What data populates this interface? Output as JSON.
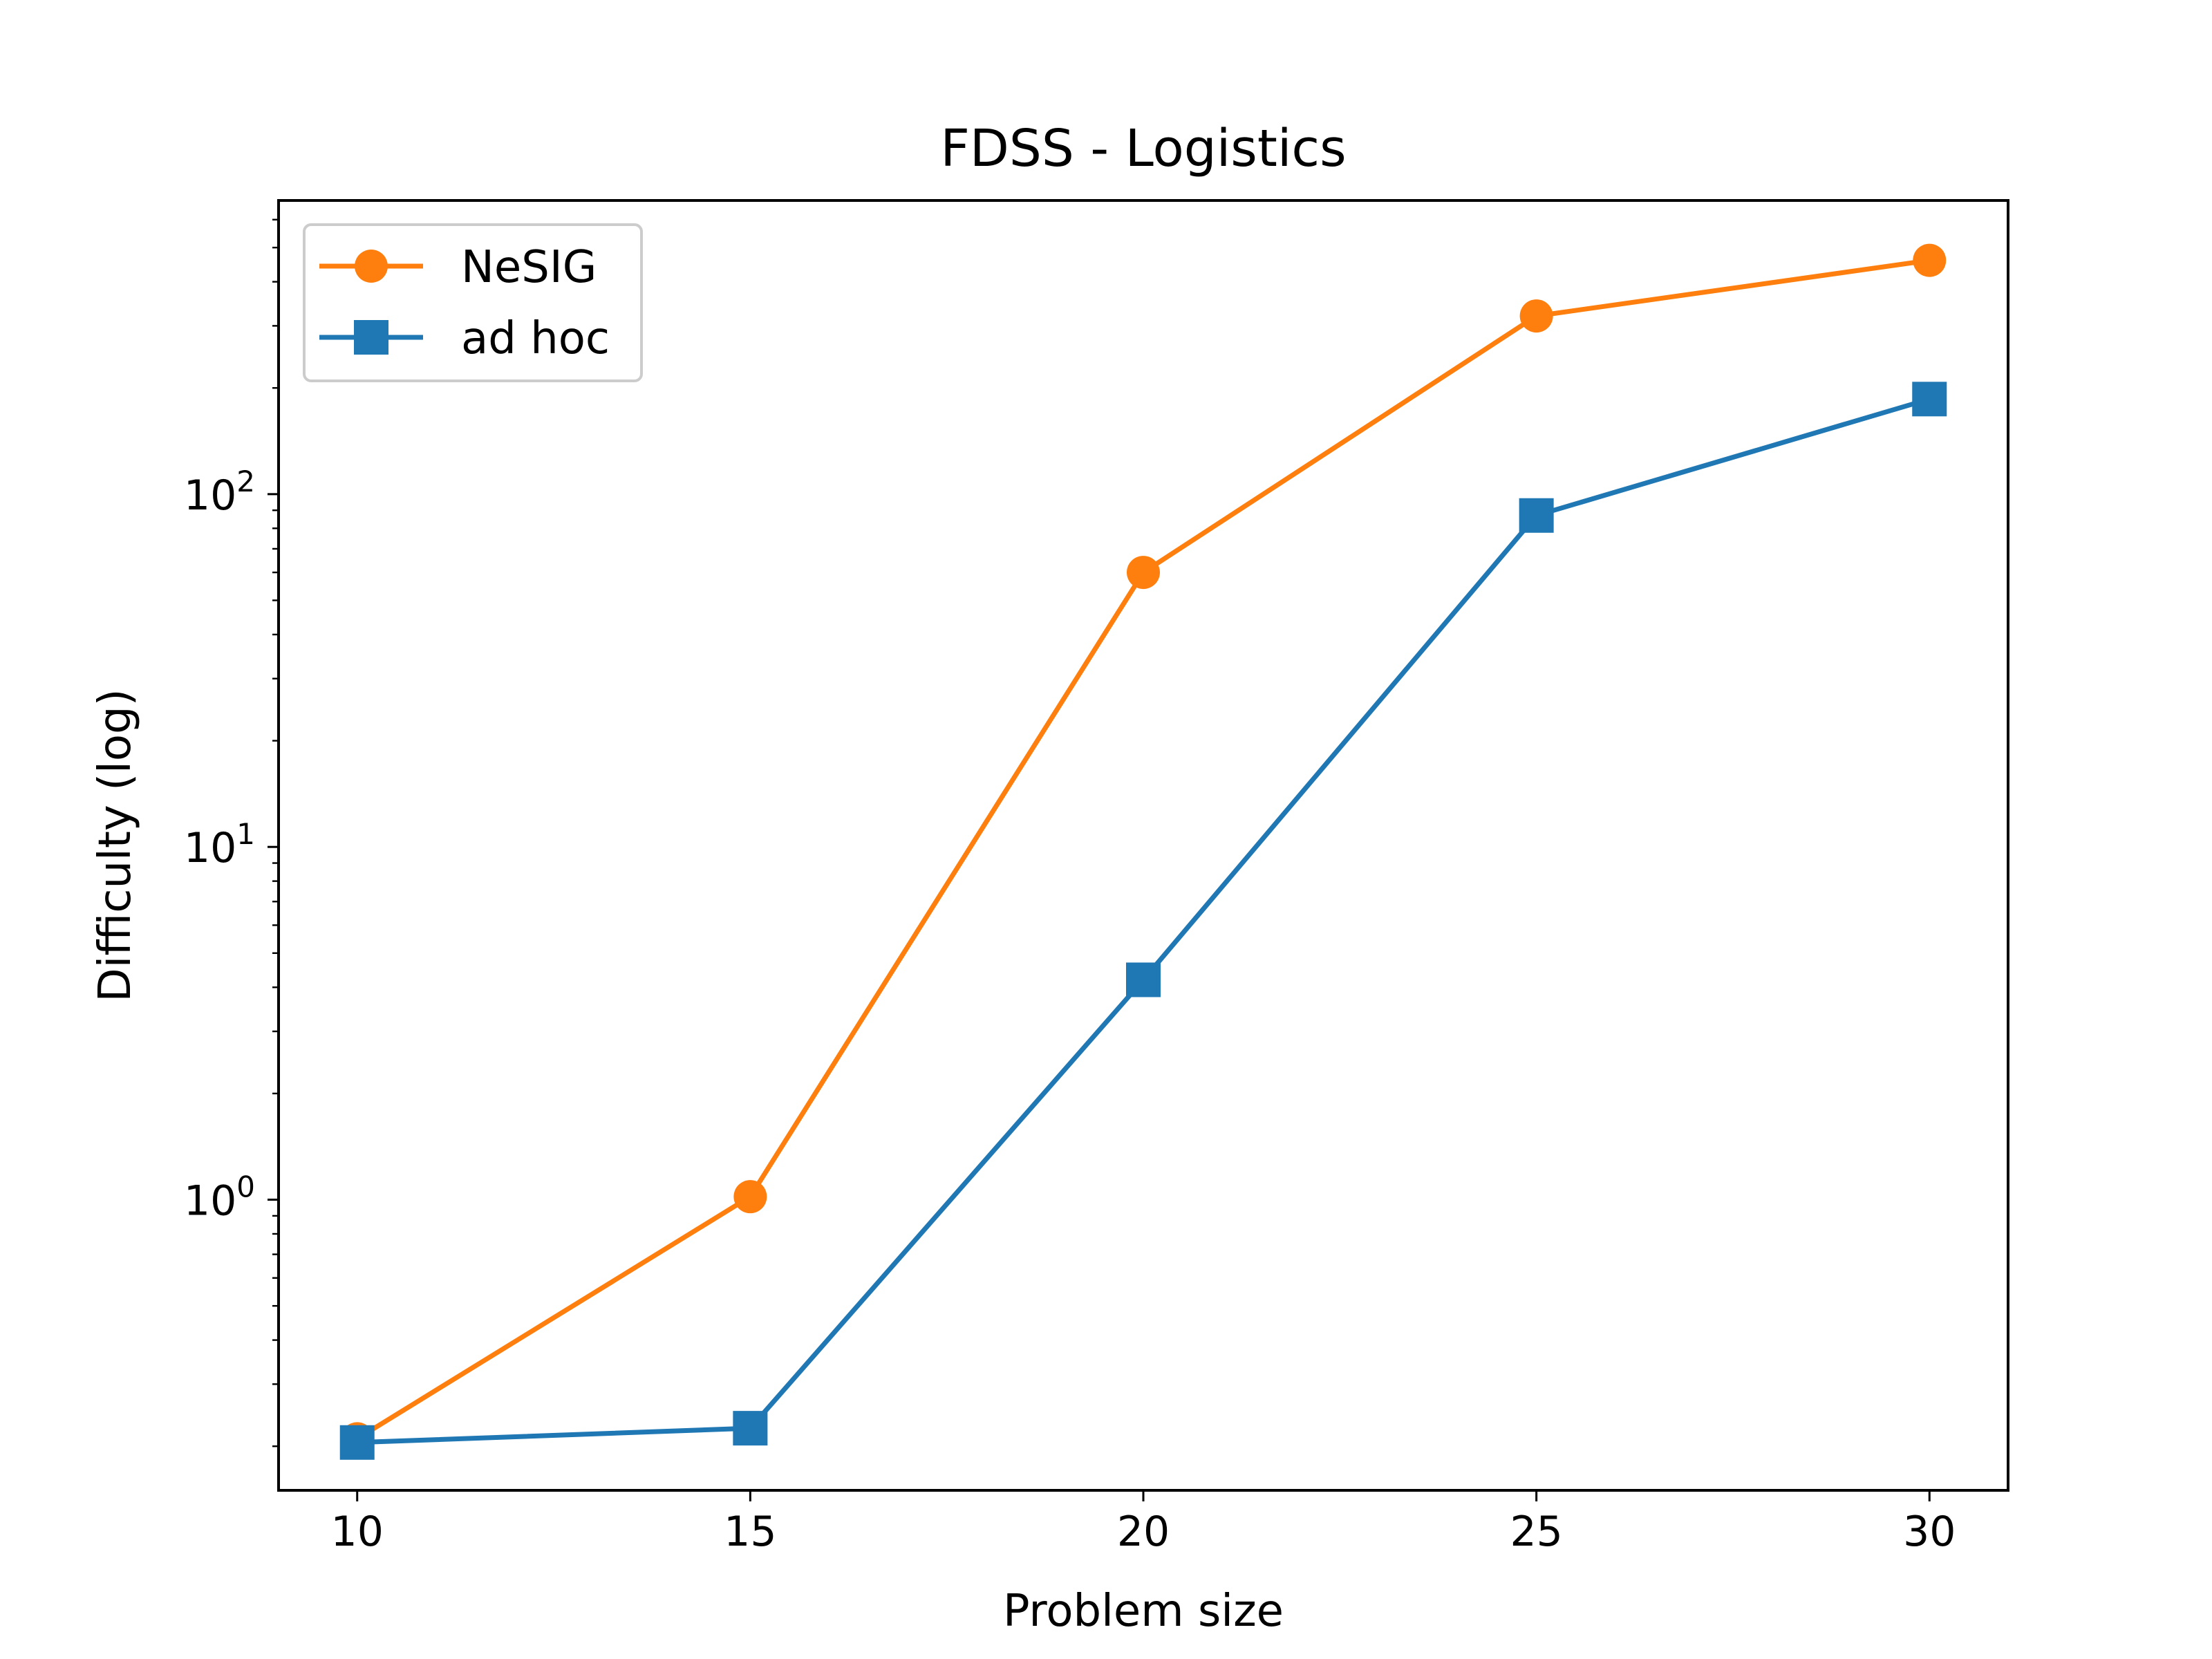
{
  "chart_data": {
    "type": "line",
    "title": "FDSS - Logistics",
    "xlabel": "Problem size",
    "ylabel": "Difficulty (log)",
    "yscale": "log",
    "x": [
      10,
      15,
      20,
      25,
      30
    ],
    "xlim": [
      9,
      31
    ],
    "ylim": [
      0.15,
      680
    ],
    "x_ticks": [
      "10",
      "15",
      "20",
      "25",
      "30"
    ],
    "y_ticks": [
      {
        "base": "10",
        "exp": "0",
        "value": 1
      },
      {
        "base": "10",
        "exp": "1",
        "value": 10
      },
      {
        "base": "10",
        "exp": "2",
        "value": 100
      }
    ],
    "legend": {
      "location": "upper-left"
    },
    "grid": false,
    "series": [
      {
        "name": "NeSIG",
        "color": "#ff7f0e",
        "marker": "circle",
        "values": [
          0.21,
          1.02,
          60,
          320,
          460
        ]
      },
      {
        "name": "ad hoc",
        "color": "#1f77b4",
        "marker": "square",
        "values": [
          0.205,
          0.225,
          4.2,
          87,
          186
        ]
      }
    ]
  }
}
